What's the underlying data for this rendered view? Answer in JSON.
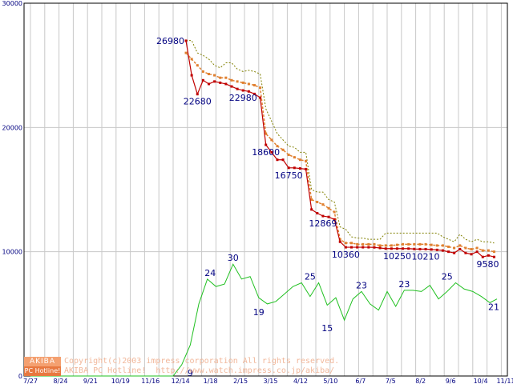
{
  "chart_data": {
    "type": "line",
    "title": "",
    "xlabel": "",
    "ylabel": "",
    "ylim": [
      0,
      30000
    ],
    "grid": true,
    "y_ticks": [
      "0",
      "10000",
      "20000",
      "30000"
    ],
    "x_ticks": [
      "7/27",
      "8/24",
      "9/21",
      "10/19",
      "11/16",
      "12/14",
      "1/18",
      "2/15",
      "3/15",
      "4/12",
      "5/10",
      "6/7",
      "7/5",
      "8/2",
      "9/6",
      "10/4",
      "11/11"
    ],
    "red": {
      "color": "#c00000",
      "x": [
        10.9,
        11.3,
        11.7,
        12.1,
        12.5,
        12.9,
        13.3,
        13.7,
        14.1,
        14.5,
        14.9,
        15.3,
        15.7,
        16.1,
        16.5,
        16.9,
        17.3,
        17.7,
        18.1,
        18.5,
        18.9,
        19.3,
        19.7,
        20.1,
        20.5,
        20.9,
        21.3,
        21.7,
        22.1,
        22.5,
        22.9,
        23.3,
        23.7,
        24.1,
        24.5,
        24.9,
        25.3,
        25.7,
        26.1,
        26.5,
        26.9,
        27.3,
        27.7,
        28.1,
        28.5,
        28.9,
        29.3,
        29.7,
        30.1,
        30.5,
        30.9,
        31.3,
        31.7,
        32.1,
        32.5
      ],
      "y": [
        26980,
        24200,
        22680,
        23800,
        23500,
        23700,
        23600,
        23500,
        23300,
        23100,
        22980,
        22900,
        22700,
        22400,
        18600,
        18000,
        17400,
        17400,
        16750,
        16750,
        16700,
        16650,
        13400,
        13100,
        12869,
        12800,
        12600,
        10800,
        10360,
        10360,
        10360,
        10360,
        10360,
        10350,
        10300,
        10250,
        10250,
        10250,
        10250,
        10250,
        10220,
        10210,
        10210,
        10180,
        10150,
        10100,
        10000,
        9900,
        10210,
        9900,
        9800,
        10000,
        9580,
        9700,
        9580
      ]
    },
    "orange": {
      "color": "#e08030",
      "x": [
        10.9,
        11.3,
        11.7,
        12.1,
        12.5,
        12.9,
        13.3,
        13.7,
        14.1,
        14.5,
        14.9,
        15.3,
        15.7,
        16.1,
        16.5,
        16.9,
        17.3,
        17.7,
        18.1,
        18.5,
        18.9,
        19.3,
        19.7,
        20.1,
        20.5,
        20.9,
        21.3,
        21.7,
        22.1,
        22.5,
        22.9,
        23.3,
        23.7,
        24.1,
        24.5,
        24.9,
        25.3,
        25.7,
        26.1,
        26.5,
        26.9,
        27.3,
        27.7,
        28.1,
        28.5,
        28.9,
        29.3,
        29.7,
        30.1,
        30.5,
        30.9,
        31.3,
        31.7,
        32.1,
        32.5
      ],
      "y": [
        26000,
        25500,
        25000,
        24500,
        24300,
        24200,
        24000,
        24000,
        23800,
        23700,
        23600,
        23500,
        23400,
        23200,
        19500,
        19000,
        18500,
        18200,
        17800,
        17600,
        17400,
        17300,
        14200,
        14000,
        13800,
        13500,
        13200,
        11000,
        10700,
        10700,
        10600,
        10600,
        10600,
        10600,
        10500,
        10500,
        10500,
        10550,
        10600,
        10600,
        10600,
        10600,
        10600,
        10550,
        10500,
        10500,
        10400,
        10300,
        10500,
        10300,
        10200,
        10300,
        10100,
        10100,
        10000
      ]
    },
    "olive": {
      "color": "#808000",
      "x": [
        10.9,
        11.3,
        11.7,
        12.1,
        12.5,
        12.9,
        13.3,
        13.7,
        14.1,
        14.5,
        14.9,
        15.3,
        15.7,
        16.1,
        16.5,
        16.9,
        17.3,
        17.7,
        18.1,
        18.5,
        18.9,
        19.3,
        19.7,
        20.1,
        20.5,
        20.9,
        21.3,
        21.7,
        22.1,
        22.5,
        22.9,
        23.3,
        23.7,
        24.1,
        24.5,
        24.9,
        25.3,
        25.7,
        26.1,
        26.5,
        26.9,
        27.3,
        27.7,
        28.1,
        28.5,
        28.9,
        29.3,
        29.7,
        30.1,
        30.5,
        30.9,
        31.3,
        31.7,
        32.1,
        32.5
      ],
      "y": [
        27000,
        27000,
        26000,
        25800,
        25500,
        25000,
        24800,
        25200,
        25200,
        24700,
        24500,
        24600,
        24500,
        24300,
        21500,
        20500,
        19500,
        19000,
        18500,
        18400,
        18000,
        18000,
        15000,
        14800,
        14800,
        14200,
        14000,
        12000,
        11800,
        11200,
        11100,
        11100,
        11000,
        11000,
        11000,
        11500,
        11500,
        11500,
        11500,
        11500,
        11500,
        11500,
        11500,
        11500,
        11500,
        11200,
        11000,
        10800,
        11400,
        11000,
        10800,
        11000,
        10800,
        10800,
        10700
      ]
    },
    "green": {
      "color": "#20c020",
      "x": [
        0,
        1,
        2,
        3,
        4,
        5,
        6,
        7,
        8,
        9,
        10,
        10.6,
        11.2,
        11.8,
        12.4,
        13.0,
        13.6,
        14.2,
        14.8,
        15.4,
        16.0,
        16.6,
        17.2,
        17.8,
        18.4,
        19.0,
        19.6,
        20.2,
        20.8,
        21.4,
        22.0,
        22.6,
        23.2,
        23.8,
        24.4,
        25.0,
        25.6,
        26.2,
        26.8,
        27.4,
        28.0,
        28.6,
        29.2,
        29.8,
        30.4,
        31.0,
        31.6,
        32.2,
        32.7
      ],
      "y": [
        0,
        0,
        0,
        0,
        0,
        0,
        0,
        0,
        0,
        0,
        0,
        900,
        2500,
        5800,
        7800,
        7200,
        7400,
        9000,
        7800,
        8000,
        6300,
        5800,
        6000,
        6600,
        7200,
        7500,
        6400,
        7500,
        5700,
        6300,
        4500,
        6200,
        6800,
        5800,
        5300,
        6800,
        5600,
        6900,
        6900,
        6800,
        7300,
        6200,
        6800,
        7500,
        7000,
        6800,
        6400,
        5900,
        6200
      ]
    },
    "annotations": [
      {
        "text": "26980",
        "x": 10.9,
        "y": 26980,
        "series": "red"
      },
      {
        "text": "22680",
        "x": 11.7,
        "y": 22680,
        "series": "red"
      },
      {
        "text": "22980",
        "x": 14.9,
        "y": 22980,
        "series": "red"
      },
      {
        "text": "18600",
        "x": 16.5,
        "y": 18600,
        "series": "red"
      },
      {
        "text": "16750",
        "x": 18.1,
        "y": 16750,
        "series": "red"
      },
      {
        "text": "12869",
        "x": 20.5,
        "y": 12869,
        "series": "red"
      },
      {
        "text": "10360",
        "x": 22.1,
        "y": 10360,
        "series": "red"
      },
      {
        "text": "10250",
        "x": 25.7,
        "y": 10250,
        "series": "red"
      },
      {
        "text": "10210",
        "x": 27.7,
        "y": 10210,
        "series": "red"
      },
      {
        "text": "9580",
        "x": 32.5,
        "y": 9580,
        "series": "red"
      },
      {
        "text": "9",
        "x": 11.2,
        "y": 900,
        "series": "green"
      },
      {
        "text": "24",
        "x": 12.6,
        "y": 7800,
        "series": "green"
      },
      {
        "text": "30",
        "x": 14.2,
        "y": 9000,
        "series": "green"
      },
      {
        "text": "19",
        "x": 16.0,
        "y": 5800,
        "series": "green"
      },
      {
        "text": "25",
        "x": 19.6,
        "y": 7500,
        "series": "green"
      },
      {
        "text": "15",
        "x": 20.8,
        "y": 4500,
        "series": "green"
      },
      {
        "text": "23",
        "x": 23.2,
        "y": 6800,
        "series": "green"
      },
      {
        "text": "23",
        "x": 26.2,
        "y": 6900,
        "series": "green"
      },
      {
        "text": "25",
        "x": 29.2,
        "y": 7500,
        "series": "green"
      },
      {
        "text": "21",
        "x": 32.7,
        "y": 6200,
        "series": "green"
      }
    ]
  },
  "watermark": {
    "logo_top": "AKIBA",
    "logo_bottom": "PC Hotline!",
    "line1": "Copyright(c)2003 impress corporation All rights reserved.",
    "line2": "AKIBA PC Hotline!  http://www.watch.impress.co.jp/akiba/"
  }
}
